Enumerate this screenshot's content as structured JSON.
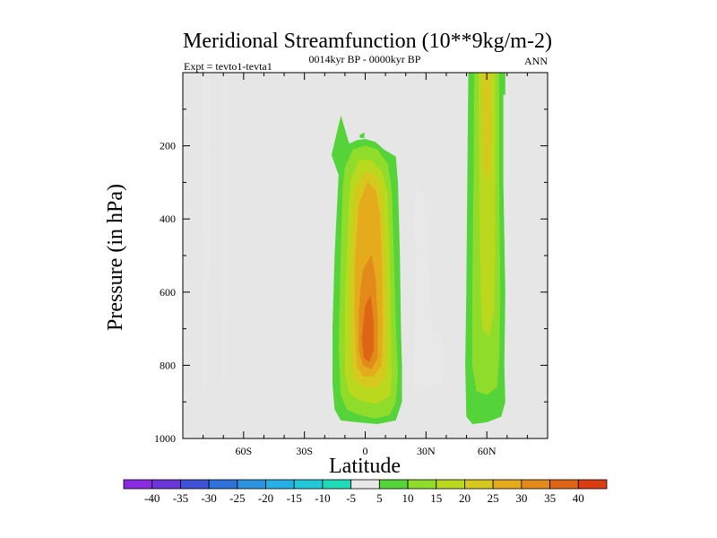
{
  "chart_data": {
    "type": "filled-contour",
    "title": "Meridional Streamfunction (10**9kg/m-2)",
    "subtitle_left": "Expt = tevto1-tevta1",
    "subtitle_center": "0014kyr BP - 0000kyr BP",
    "subtitle_right": "ANN",
    "xlabel": "Latitude",
    "ylabel": "Pressure (in hPa)",
    "xlim": [
      -90,
      90
    ],
    "ylim": [
      0,
      1000
    ],
    "y_inverted": true,
    "x_ticks": [
      {
        "value": -60,
        "label": "60S"
      },
      {
        "value": -30,
        "label": "30S"
      },
      {
        "value": 0,
        "label": "0"
      },
      {
        "value": 30,
        "label": "30N"
      },
      {
        "value": 60,
        "label": "60N"
      }
    ],
    "y_ticks": [
      {
        "value": 200,
        "label": "200"
      },
      {
        "value": 400,
        "label": "400"
      },
      {
        "value": 600,
        "label": "600"
      },
      {
        "value": 800,
        "label": "800"
      },
      {
        "value": 1000,
        "label": "1000"
      }
    ],
    "background_color": "#e6e6e6",
    "colorbar": {
      "levels": [
        {
          "value": -40,
          "label": "-40"
        },
        {
          "value": -35,
          "label": "-35"
        },
        {
          "value": -30,
          "label": "-30"
        },
        {
          "value": -25,
          "label": "-25"
        },
        {
          "value": -20,
          "label": "-20"
        },
        {
          "value": -15,
          "label": "-15"
        },
        {
          "value": -10,
          "label": "-10"
        },
        {
          "value": -5,
          "label": "-5"
        },
        {
          "value": 5,
          "label": "5"
        },
        {
          "value": 10,
          "label": "10"
        },
        {
          "value": 15,
          "label": "15"
        },
        {
          "value": 20,
          "label": "20"
        },
        {
          "value": 25,
          "label": "25"
        },
        {
          "value": 30,
          "label": "30"
        },
        {
          "value": 35,
          "label": "35"
        },
        {
          "value": 40,
          "label": "40"
        }
      ],
      "colors": [
        "#8a2be2",
        "#6a36d8",
        "#3f51d6",
        "#2f72dc",
        "#2b93e0",
        "#26b0e3",
        "#22c8d8",
        "#1fdcb8",
        "#e8e8e8",
        "#55d43a",
        "#8fdc2a",
        "#b9d81e",
        "#d6c81c",
        "#e4ac1c",
        "#e28a1a",
        "#de6416",
        "#dc3c12"
      ]
    },
    "series": [
      {
        "name": "sh-high-lat-negative",
        "value": -5,
        "points": [
          [
            -80,
            0
          ],
          [
            -77,
            0
          ],
          [
            -77,
            540
          ],
          [
            -78,
            660
          ],
          [
            -77.5,
            800
          ],
          [
            -79,
            880
          ],
          [
            -80,
            820
          ],
          [
            -79.5,
            500
          ],
          [
            -80,
            200
          ]
        ]
      },
      {
        "name": "sh-high-lat-negative-2",
        "value": -5,
        "points": [
          [
            -70.5,
            0
          ],
          [
            -68.5,
            0
          ],
          [
            -68.5,
            600
          ],
          [
            -69,
            780
          ],
          [
            -69.5,
            890
          ],
          [
            -70.5,
            800
          ],
          [
            -70,
            500
          ],
          [
            -70.5,
            200
          ]
        ]
      },
      {
        "name": "tropics-positive-outer",
        "value": 5,
        "points": [
          [
            -16.5,
            225
          ],
          [
            -12,
            120
          ],
          [
            -8,
            195
          ],
          [
            -4,
            185
          ],
          [
            0,
            182
          ],
          [
            5,
            190
          ],
          [
            9,
            210
          ],
          [
            15,
            230
          ],
          [
            16,
            300
          ],
          [
            17,
            500
          ],
          [
            17.5,
            700
          ],
          [
            18,
            800
          ],
          [
            18,
            900
          ],
          [
            15,
            950
          ],
          [
            6,
            960
          ],
          [
            -4,
            955
          ],
          [
            -12,
            950
          ],
          [
            -15,
            920
          ],
          [
            -16,
            850
          ],
          [
            -16,
            700
          ],
          [
            -15,
            500
          ],
          [
            -13,
            280
          ]
        ]
      },
      {
        "name": "tropics-positive-10",
        "value": 10,
        "points": [
          [
            -10,
            260
          ],
          [
            -6,
            210
          ],
          [
            0,
            200
          ],
          [
            6,
            210
          ],
          [
            11,
            250
          ],
          [
            13,
            320
          ],
          [
            14,
            500
          ],
          [
            15,
            700
          ],
          [
            16,
            820
          ],
          [
            15,
            900
          ],
          [
            12,
            935
          ],
          [
            5,
            945
          ],
          [
            -3,
            935
          ],
          [
            -9,
            920
          ],
          [
            -12,
            880
          ],
          [
            -13,
            750
          ],
          [
            -12,
            500
          ],
          [
            -11,
            320
          ]
        ]
      },
      {
        "name": "tropics-positive-15",
        "value": 15,
        "points": [
          [
            -7,
            290
          ],
          [
            -3,
            240
          ],
          [
            3,
            240
          ],
          [
            8,
            270
          ],
          [
            11,
            330
          ],
          [
            12,
            500
          ],
          [
            12.5,
            700
          ],
          [
            13,
            830
          ],
          [
            12,
            885
          ],
          [
            5,
            905
          ],
          [
            -3,
            895
          ],
          [
            -8,
            875
          ],
          [
            -10,
            820
          ],
          [
            -10,
            650
          ],
          [
            -9,
            500
          ],
          [
            -8,
            350
          ]
        ]
      },
      {
        "name": "tropics-positive-20",
        "value": 20,
        "points": [
          [
            -5,
            320
          ],
          [
            0,
            270
          ],
          [
            5,
            280
          ],
          [
            8,
            330
          ],
          [
            10,
            500
          ],
          [
            10.5,
            700
          ],
          [
            10,
            830
          ],
          [
            6,
            860
          ],
          [
            0,
            860
          ],
          [
            -5,
            840
          ],
          [
            -7,
            780
          ],
          [
            -7,
            600
          ],
          [
            -6,
            420
          ]
        ]
      },
      {
        "name": "tropics-positive-25",
        "value": 25,
        "points": [
          [
            -3,
            360
          ],
          [
            1,
            300
          ],
          [
            5,
            320
          ],
          [
            7,
            380
          ],
          [
            8,
            500
          ],
          [
            8.5,
            700
          ],
          [
            8,
            800
          ],
          [
            4,
            830
          ],
          [
            -1,
            830
          ],
          [
            -4,
            800
          ],
          [
            -5,
            700
          ],
          [
            -5,
            520
          ],
          [
            -4,
            430
          ]
        ]
      },
      {
        "name": "tropics-positive-30",
        "value": 30,
        "points": [
          [
            -1,
            540
          ],
          [
            3,
            500
          ],
          [
            5,
            560
          ],
          [
            6,
            680
          ],
          [
            6,
            780
          ],
          [
            3,
            810
          ],
          [
            -1,
            800
          ],
          [
            -3,
            760
          ],
          [
            -3,
            650
          ],
          [
            -2,
            580
          ]
        ]
      },
      {
        "name": "tropics-positive-35",
        "value": 35,
        "points": [
          [
            0,
            640
          ],
          [
            2.5,
            610
          ],
          [
            4,
            680
          ],
          [
            4,
            760
          ],
          [
            2,
            790
          ],
          [
            -0.5,
            780
          ],
          [
            -1.5,
            730
          ]
        ]
      },
      {
        "name": "tropics-small-positive",
        "value": 5,
        "points": [
          [
            -2.5,
            170
          ],
          [
            -0.5,
            165
          ],
          [
            -0.5,
            178
          ],
          [
            -2.5,
            178
          ]
        ]
      },
      {
        "name": "subtropics-negative",
        "value": -5,
        "points": [
          [
            25,
            315
          ],
          [
            29,
            330
          ],
          [
            31,
            500
          ],
          [
            33,
            700
          ],
          [
            37,
            710
          ],
          [
            39,
            770
          ],
          [
            40.5,
            790
          ],
          [
            38,
            780
          ],
          [
            38.5,
            840
          ],
          [
            37,
            860
          ],
          [
            34,
            850
          ],
          [
            28,
            870
          ],
          [
            24,
            855
          ],
          [
            24.5,
            700
          ],
          [
            25,
            500
          ],
          [
            24,
            400
          ]
        ]
      },
      {
        "name": "nh-mid-lat-positive-outer",
        "value": 5,
        "points": [
          [
            51,
            0
          ],
          [
            68,
            0
          ],
          [
            68,
            300
          ],
          [
            69,
            600
          ],
          [
            68.5,
            800
          ],
          [
            69,
            900
          ],
          [
            67,
            940
          ],
          [
            60,
            955
          ],
          [
            53,
            960
          ],
          [
            50,
            940
          ],
          [
            49.5,
            800
          ],
          [
            50,
            600
          ],
          [
            50.5,
            300
          ]
        ]
      },
      {
        "name": "nh-mid-lat-positive-10",
        "value": 10,
        "points": [
          [
            54,
            0
          ],
          [
            66,
            0
          ],
          [
            66,
            300
          ],
          [
            66.5,
            600
          ],
          [
            66,
            780
          ],
          [
            65,
            860
          ],
          [
            60,
            880
          ],
          [
            55,
            870
          ],
          [
            53,
            800
          ],
          [
            53,
            600
          ],
          [
            53.5,
            300
          ]
        ]
      },
      {
        "name": "nh-mid-lat-positive-15",
        "value": 15,
        "points": [
          [
            56,
            0
          ],
          [
            64,
            0
          ],
          [
            64,
            250
          ],
          [
            64,
            500
          ],
          [
            63.5,
            650
          ],
          [
            61,
            720
          ],
          [
            58,
            700
          ],
          [
            57,
            600
          ],
          [
            56.5,
            400
          ]
        ]
      },
      {
        "name": "nh-mid-lat-positive-20",
        "value": 20,
        "points": [
          [
            58,
            0
          ],
          [
            62,
            0
          ],
          [
            62,
            120
          ],
          [
            61.5,
            260
          ],
          [
            60,
            300
          ],
          [
            58.5,
            250
          ],
          [
            58,
            120
          ]
        ]
      },
      {
        "name": "nh-edge-negative",
        "value": -5,
        "points": [
          [
            69.5,
            0
          ],
          [
            71,
            0
          ],
          [
            71,
            300
          ],
          [
            70.5,
            500
          ],
          [
            71,
            720
          ],
          [
            70,
            680
          ],
          [
            69.5,
            400
          ]
        ]
      },
      {
        "name": "nh-edge-positive",
        "value": 5,
        "points": [
          [
            67.5,
            0
          ],
          [
            69,
            0
          ],
          [
            69,
            60
          ],
          [
            67.5,
            60
          ]
        ]
      }
    ]
  }
}
